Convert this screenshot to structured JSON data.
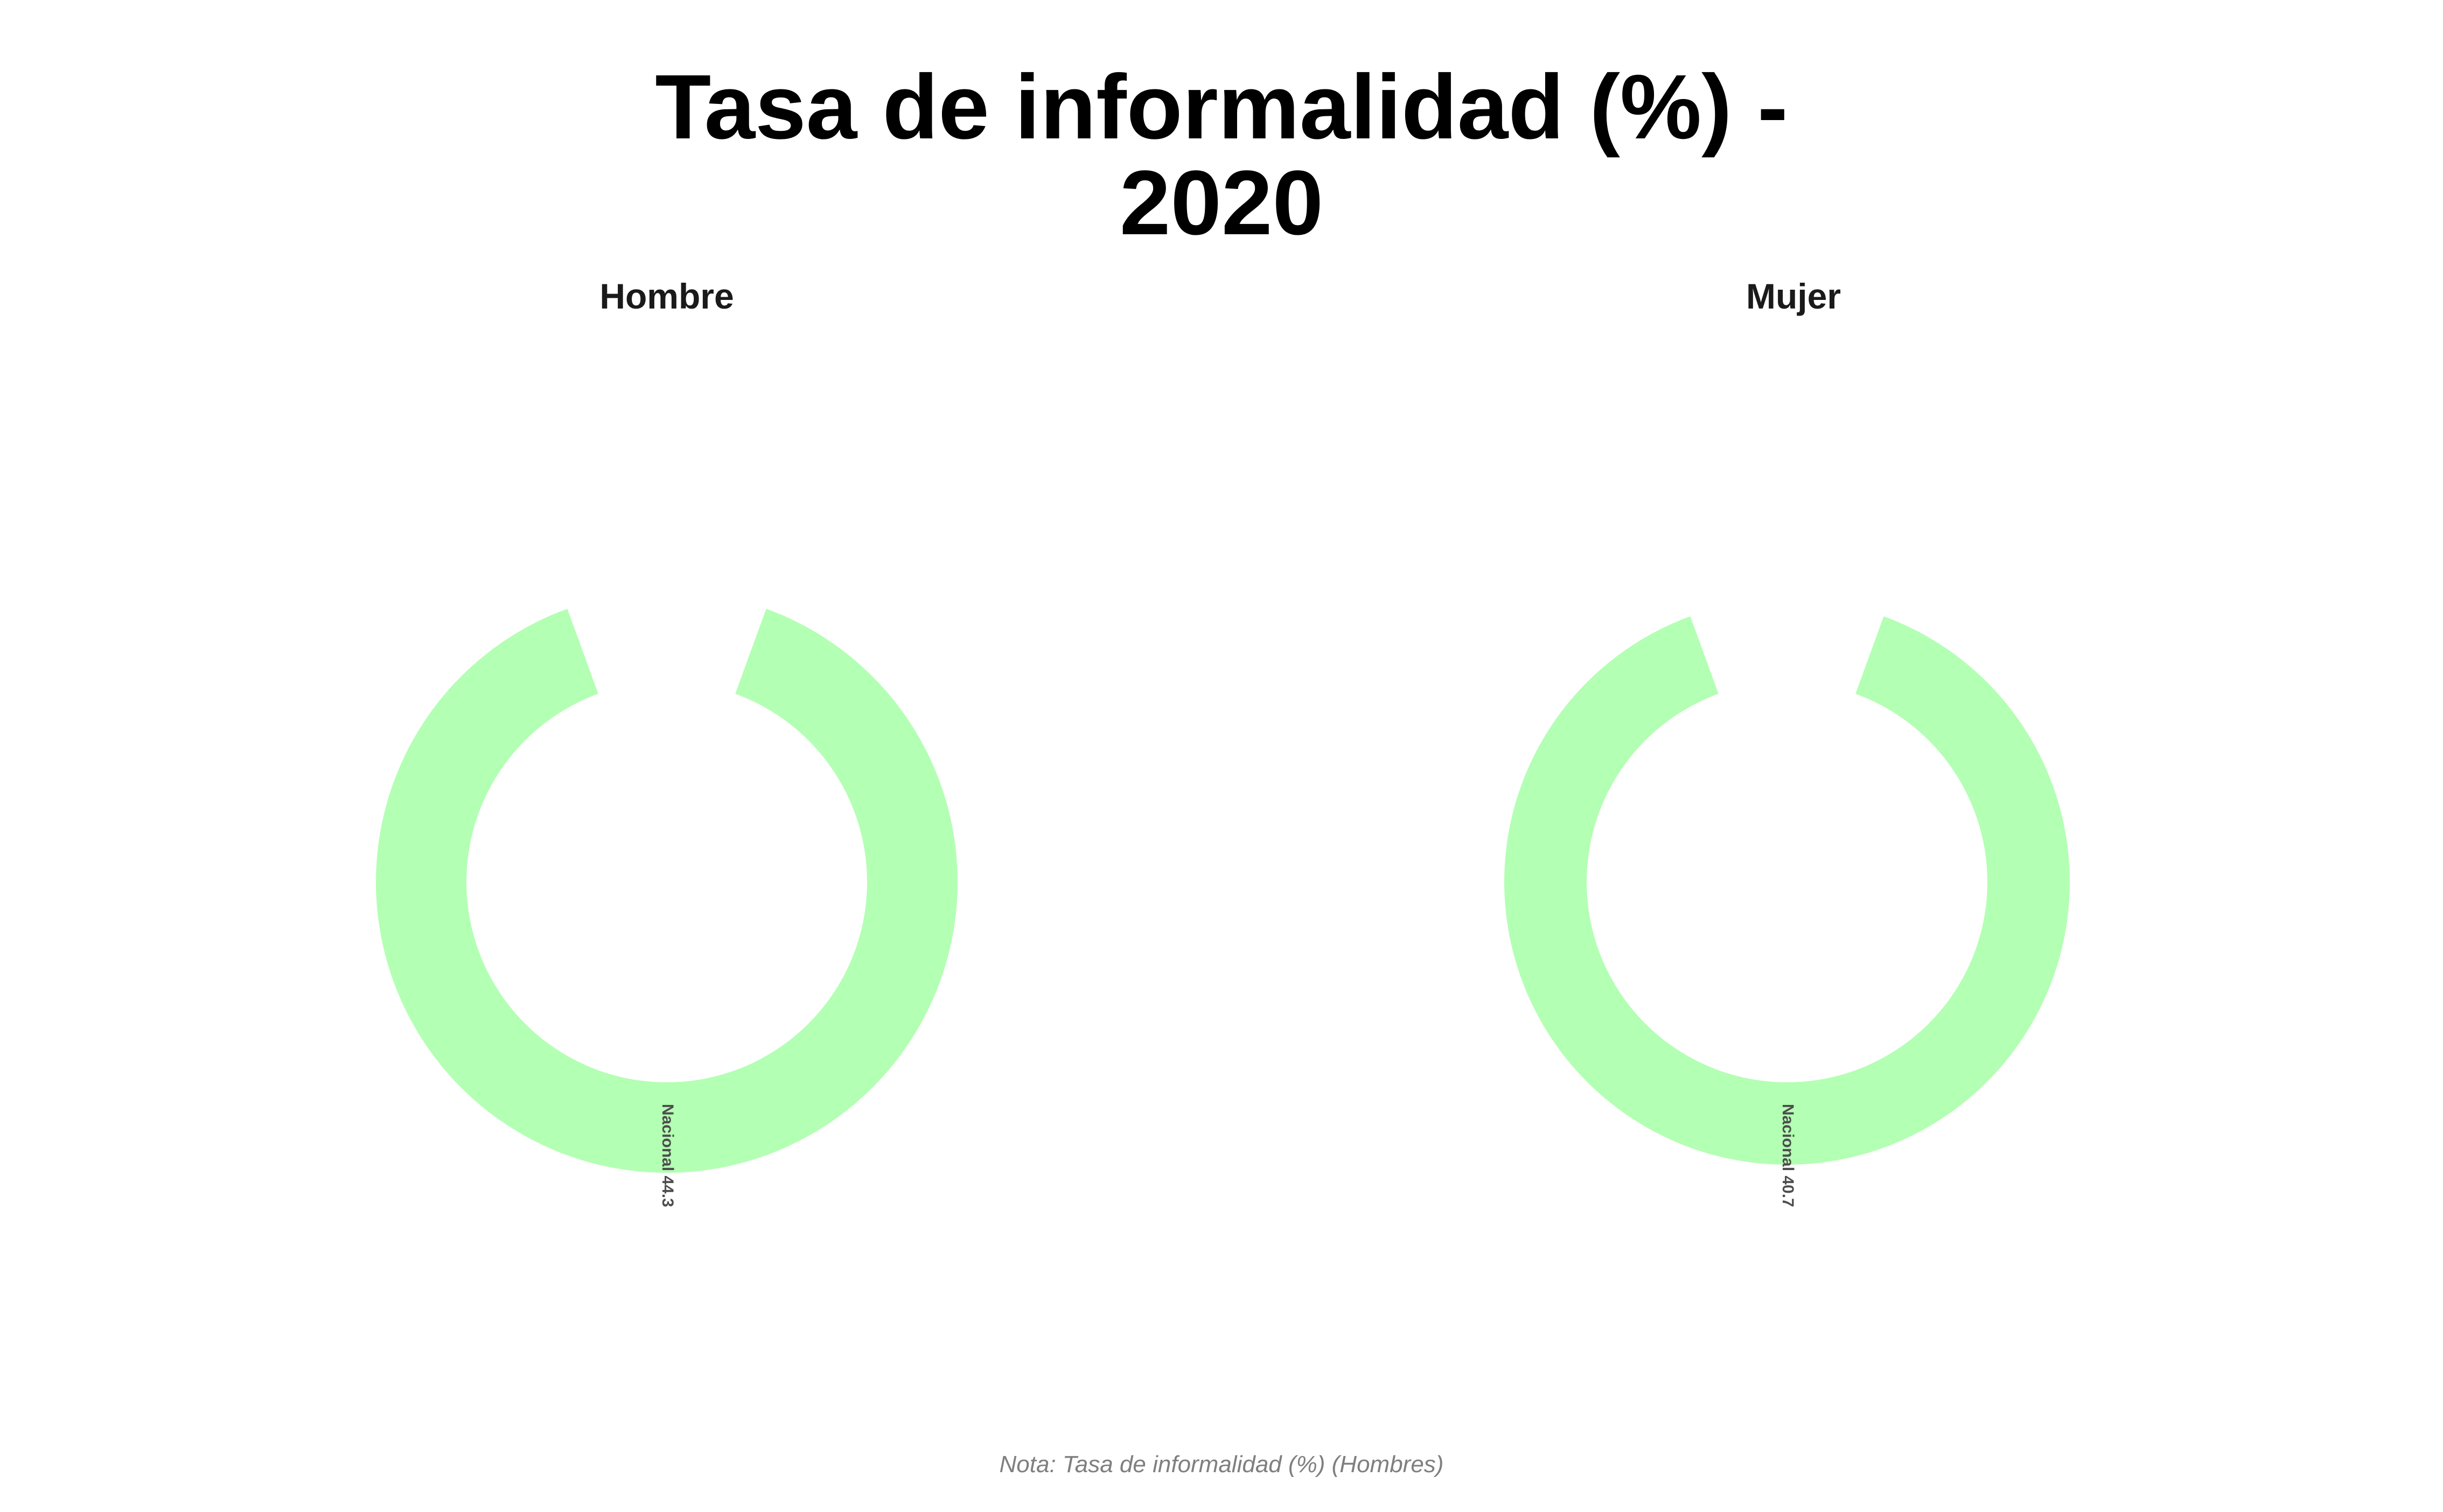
{
  "chart_data": {
    "type": "donut",
    "title": "Tasa de informalidad (%) -",
    "title_line2": "2020",
    "caption": "Nota: Tasa de informalidad (%) (Hombres)",
    "ring_color": "#b3ffb3",
    "label_color": "#4d4d4d",
    "facets": [
      {
        "name": "Hombre",
        "segments": [
          {
            "category": "Nacional",
            "value": 44.3,
            "label": "Nacional 44.3"
          }
        ]
      },
      {
        "name": "Mujer",
        "segments": [
          {
            "category": "Nacional",
            "value": 40.7,
            "label": "Nacional 40.7"
          }
        ]
      }
    ]
  }
}
